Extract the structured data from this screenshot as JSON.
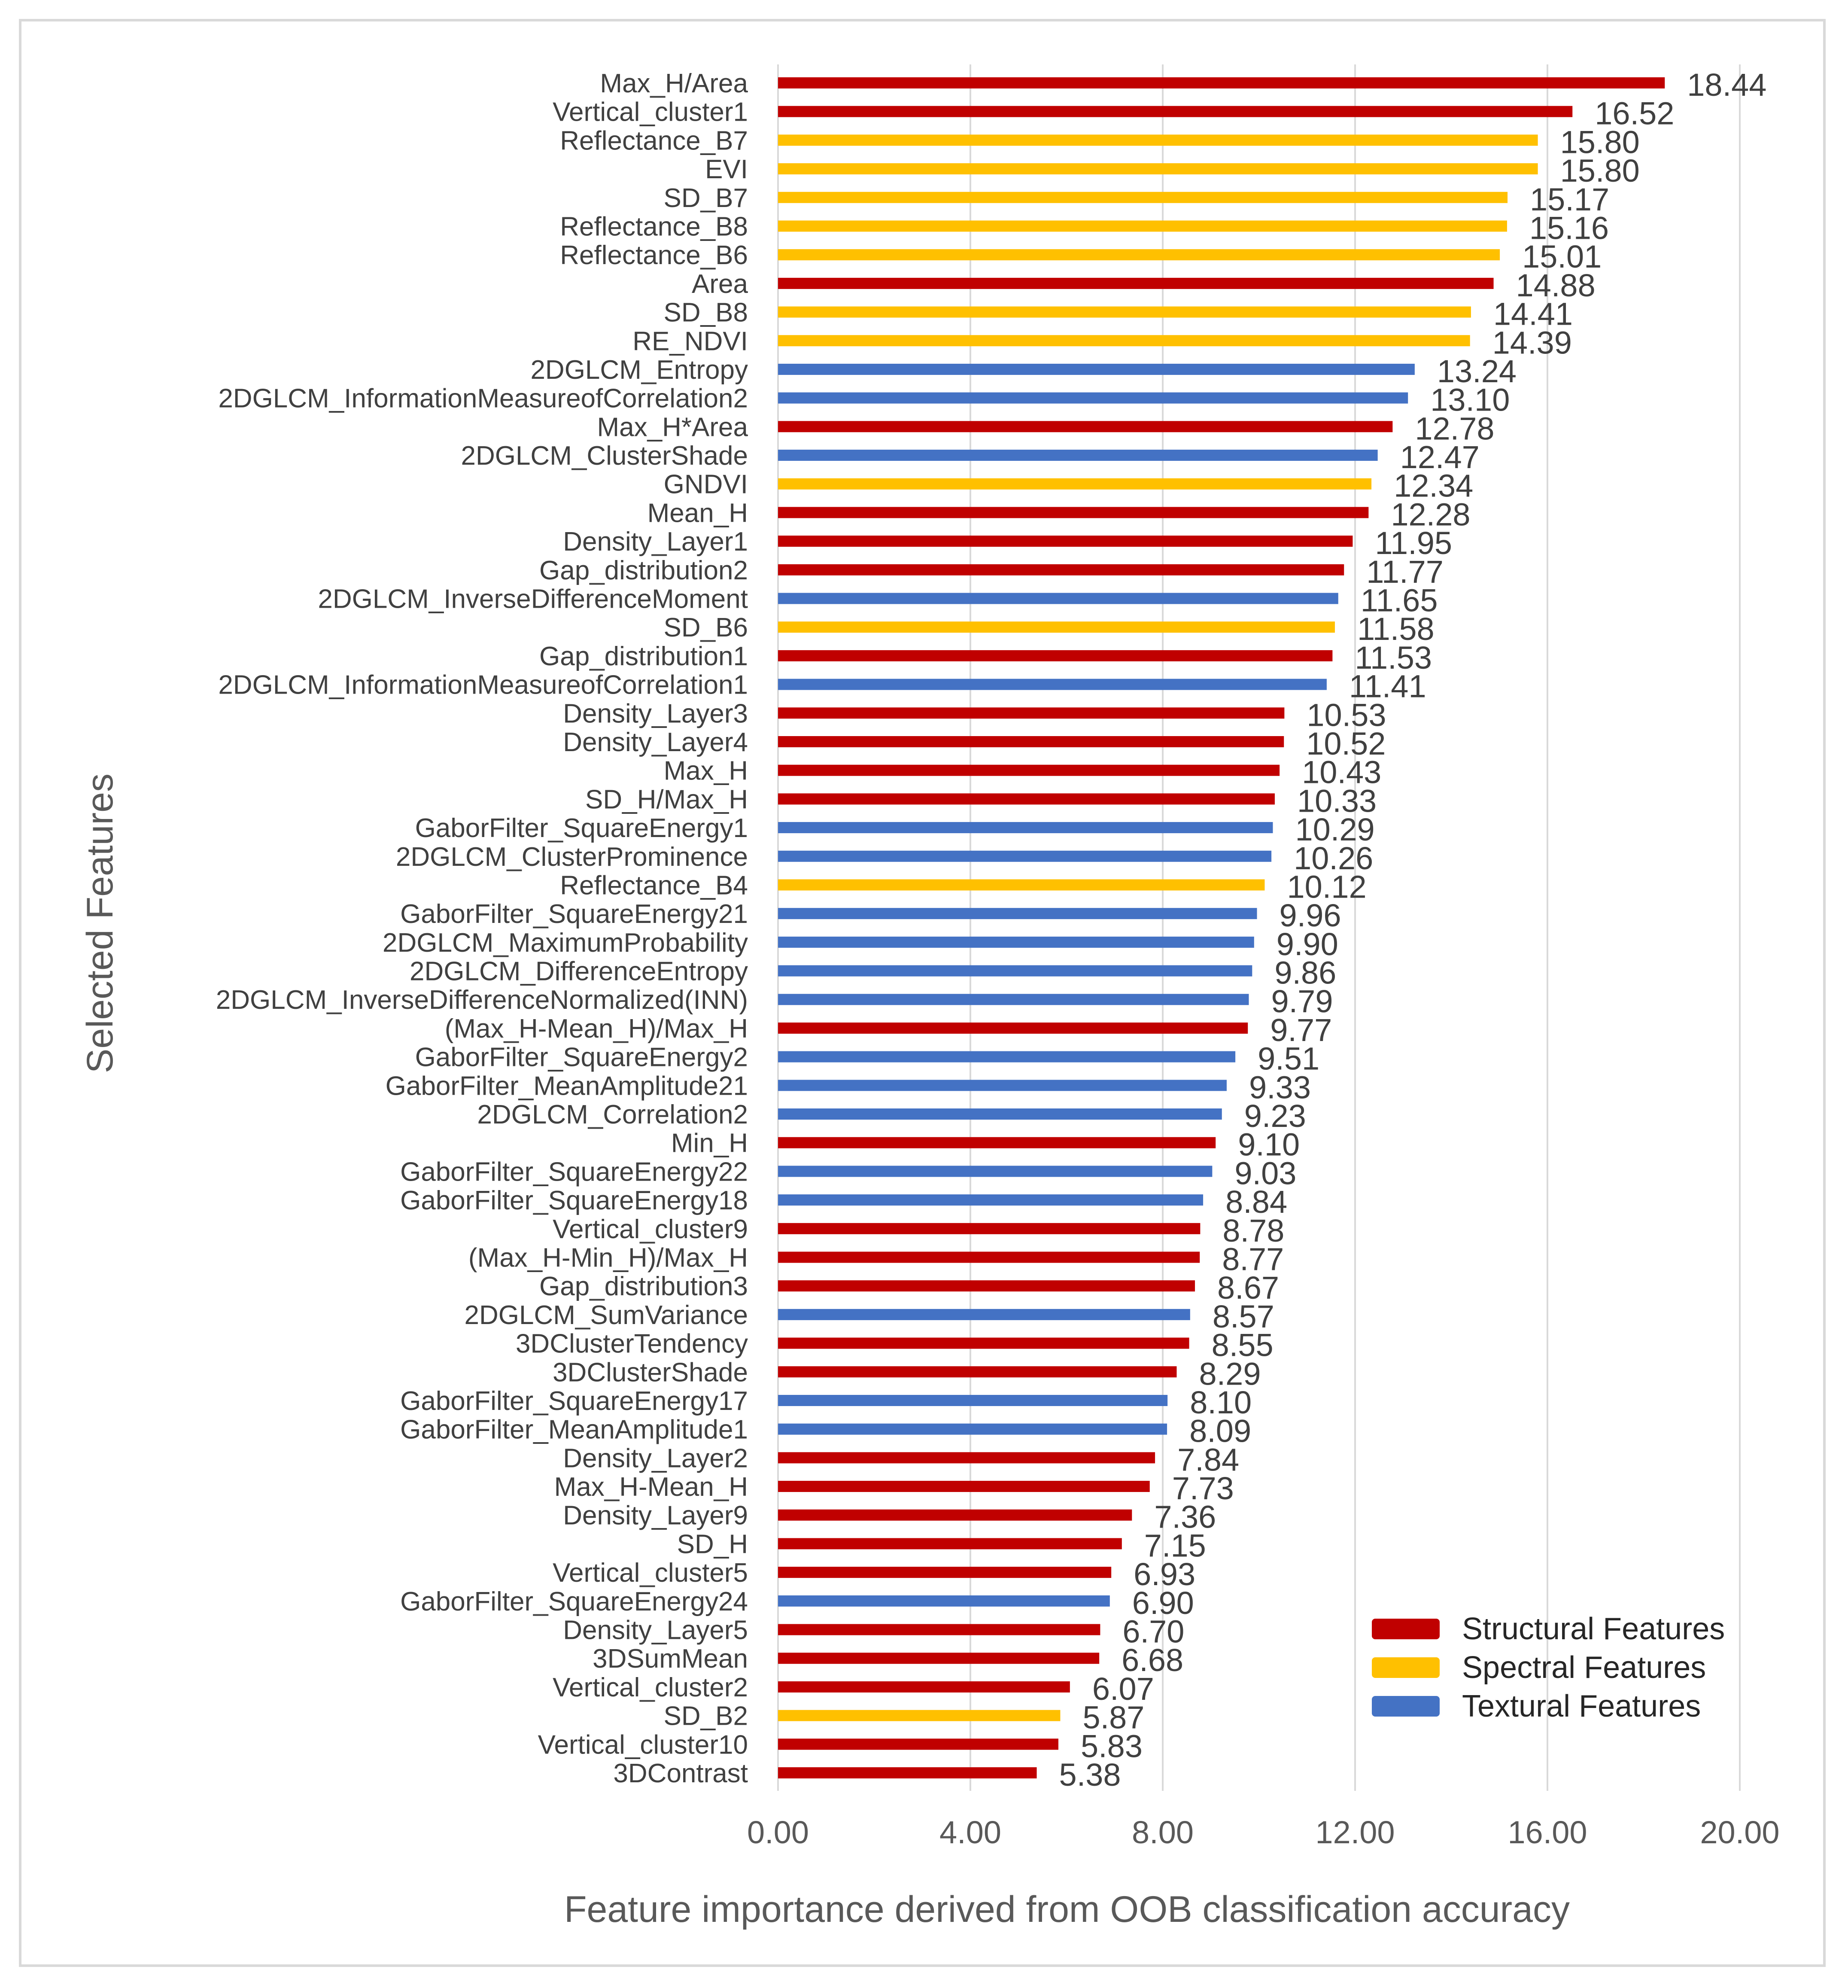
{
  "chart_data": {
    "type": "bar",
    "orientation": "horizontal",
    "xlabel": "Feature importance derived from OOB classification accuracy",
    "ylabel": "Selected Features",
    "xlim": [
      0,
      20
    ],
    "xticks": [
      "0.00",
      "4.00",
      "8.00",
      "12.00",
      "16.00",
      "20.00"
    ],
    "grid": "vertical gridlines",
    "legend_position": "bottom-right",
    "groups": [
      {
        "key": "structural",
        "name": "Structural Features",
        "color": "#c00000"
      },
      {
        "key": "spectral",
        "name": "Spectral Features",
        "color": "#ffc000"
      },
      {
        "key": "textural",
        "name": "Textural Features",
        "color": "#4472c4"
      }
    ],
    "bars": [
      {
        "label": "Max_H/Area",
        "value": 18.44,
        "text": "18.44",
        "group": "structural"
      },
      {
        "label": "Vertical_cluster1",
        "value": 16.52,
        "text": "16.52",
        "group": "structural"
      },
      {
        "label": "Reflectance_B7",
        "value": 15.8,
        "text": "15.80",
        "group": "spectral"
      },
      {
        "label": "EVI",
        "value": 15.8,
        "text": "15.80",
        "group": "spectral"
      },
      {
        "label": "SD_B7",
        "value": 15.17,
        "text": "15.17",
        "group": "spectral"
      },
      {
        "label": "Reflectance_B8",
        "value": 15.16,
        "text": "15.16",
        "group": "spectral"
      },
      {
        "label": "Reflectance_B6",
        "value": 15.01,
        "text": "15.01",
        "group": "spectral"
      },
      {
        "label": "Area",
        "value": 14.88,
        "text": "14.88",
        "group": "structural"
      },
      {
        "label": "SD_B8",
        "value": 14.41,
        "text": "14.41",
        "group": "spectral"
      },
      {
        "label": "RE_NDVI",
        "value": 14.39,
        "text": "14.39",
        "group": "spectral"
      },
      {
        "label": "2DGLCM_Entropy",
        "value": 13.24,
        "text": "13.24",
        "group": "textural"
      },
      {
        "label": "2DGLCM_InformationMeasureofCorrelation2",
        "value": 13.1,
        "text": "13.10",
        "group": "textural"
      },
      {
        "label": "Max_H*Area",
        "value": 12.78,
        "text": "12.78",
        "group": "structural"
      },
      {
        "label": "2DGLCM_ClusterShade",
        "value": 12.47,
        "text": "12.47",
        "group": "textural"
      },
      {
        "label": "GNDVI",
        "value": 12.34,
        "text": "12.34",
        "group": "spectral"
      },
      {
        "label": "Mean_H",
        "value": 12.28,
        "text": "12.28",
        "group": "structural"
      },
      {
        "label": "Density_Layer1",
        "value": 11.95,
        "text": "11.95",
        "group": "structural"
      },
      {
        "label": "Gap_distribution2",
        "value": 11.77,
        "text": "11.77",
        "group": "structural"
      },
      {
        "label": "2DGLCM_InverseDifferenceMoment",
        "value": 11.65,
        "text": "11.65",
        "group": "textural"
      },
      {
        "label": "SD_B6",
        "value": 11.58,
        "text": "11.58",
        "group": "spectral"
      },
      {
        "label": "Gap_distribution1",
        "value": 11.53,
        "text": "11.53",
        "group": "structural"
      },
      {
        "label": "2DGLCM_InformationMeasureofCorrelation1",
        "value": 11.41,
        "text": "11.41",
        "group": "textural"
      },
      {
        "label": "Density_Layer3",
        "value": 10.53,
        "text": "10.53",
        "group": "structural"
      },
      {
        "label": "Density_Layer4",
        "value": 10.52,
        "text": "10.52",
        "group": "structural"
      },
      {
        "label": "Max_H",
        "value": 10.43,
        "text": "10.43",
        "group": "structural"
      },
      {
        "label": "SD_H/Max_H",
        "value": 10.33,
        "text": "10.33",
        "group": "structural"
      },
      {
        "label": "GaborFilter_SquareEnergy1",
        "value": 10.29,
        "text": "10.29",
        "group": "textural"
      },
      {
        "label": "2DGLCM_ClusterProminence",
        "value": 10.26,
        "text": "10.26",
        "group": "textural"
      },
      {
        "label": "Reflectance_B4",
        "value": 10.12,
        "text": "10.12",
        "group": "spectral"
      },
      {
        "label": "GaborFilter_SquareEnergy21",
        "value": 9.96,
        "text": "9.96",
        "group": "textural"
      },
      {
        "label": "2DGLCM_MaximumProbability",
        "value": 9.9,
        "text": "9.90",
        "group": "textural"
      },
      {
        "label": "2DGLCM_DifferenceEntropy",
        "value": 9.86,
        "text": "9.86",
        "group": "textural"
      },
      {
        "label": "2DGLCM_InverseDifferenceNormalized(INN)",
        "value": 9.79,
        "text": "9.79",
        "group": "textural"
      },
      {
        "label": "(Max_H-Mean_H)/Max_H",
        "value": 9.77,
        "text": "9.77",
        "group": "structural"
      },
      {
        "label": "GaborFilter_SquareEnergy2",
        "value": 9.51,
        "text": "9.51",
        "group": "textural"
      },
      {
        "label": "GaborFilter_MeanAmplitude21",
        "value": 9.33,
        "text": "9.33",
        "group": "textural"
      },
      {
        "label": "2DGLCM_Correlation2",
        "value": 9.23,
        "text": "9.23",
        "group": "textural"
      },
      {
        "label": "Min_H",
        "value": 9.1,
        "text": "9.10",
        "group": "structural"
      },
      {
        "label": "GaborFilter_SquareEnergy22",
        "value": 9.03,
        "text": "9.03",
        "group": "textural"
      },
      {
        "label": "GaborFilter_SquareEnergy18",
        "value": 8.84,
        "text": "8.84",
        "group": "textural"
      },
      {
        "label": "Vertical_cluster9",
        "value": 8.78,
        "text": "8.78",
        "group": "structural"
      },
      {
        "label": "(Max_H-Min_H)/Max_H",
        "value": 8.77,
        "text": "8.77",
        "group": "structural"
      },
      {
        "label": "Gap_distribution3",
        "value": 8.67,
        "text": "8.67",
        "group": "structural"
      },
      {
        "label": "2DGLCM_SumVariance",
        "value": 8.57,
        "text": "8.57",
        "group": "textural"
      },
      {
        "label": "3DClusterTendency",
        "value": 8.55,
        "text": "8.55",
        "group": "structural"
      },
      {
        "label": "3DClusterShade",
        "value": 8.29,
        "text": "8.29",
        "group": "structural"
      },
      {
        "label": "GaborFilter_SquareEnergy17",
        "value": 8.1,
        "text": "8.10",
        "group": "textural"
      },
      {
        "label": "GaborFilter_MeanAmplitude1",
        "value": 8.09,
        "text": "8.09",
        "group": "textural"
      },
      {
        "label": "Density_Layer2",
        "value": 7.84,
        "text": "7.84",
        "group": "structural"
      },
      {
        "label": "Max_H-Mean_H",
        "value": 7.73,
        "text": "7.73",
        "group": "structural"
      },
      {
        "label": "Density_Layer9",
        "value": 7.36,
        "text": "7.36",
        "group": "structural"
      },
      {
        "label": "SD_H",
        "value": 7.15,
        "text": "7.15",
        "group": "structural"
      },
      {
        "label": "Vertical_cluster5",
        "value": 6.93,
        "text": "6.93",
        "group": "structural"
      },
      {
        "label": "GaborFilter_SquareEnergy24",
        "value": 6.9,
        "text": "6.90",
        "group": "textural"
      },
      {
        "label": "Density_Layer5",
        "value": 6.7,
        "text": "6.70",
        "group": "structural"
      },
      {
        "label": "3DSumMean",
        "value": 6.68,
        "text": "6.68",
        "group": "structural"
      },
      {
        "label": "Vertical_cluster2",
        "value": 6.07,
        "text": "6.07",
        "group": "structural"
      },
      {
        "label": "SD_B2",
        "value": 5.87,
        "text": "5.87",
        "group": "spectral"
      },
      {
        "label": "Vertical_cluster10",
        "value": 5.83,
        "text": "5.83",
        "group": "structural"
      },
      {
        "label": "3DContrast",
        "value": 5.38,
        "text": "5.38",
        "group": "structural"
      }
    ]
  }
}
